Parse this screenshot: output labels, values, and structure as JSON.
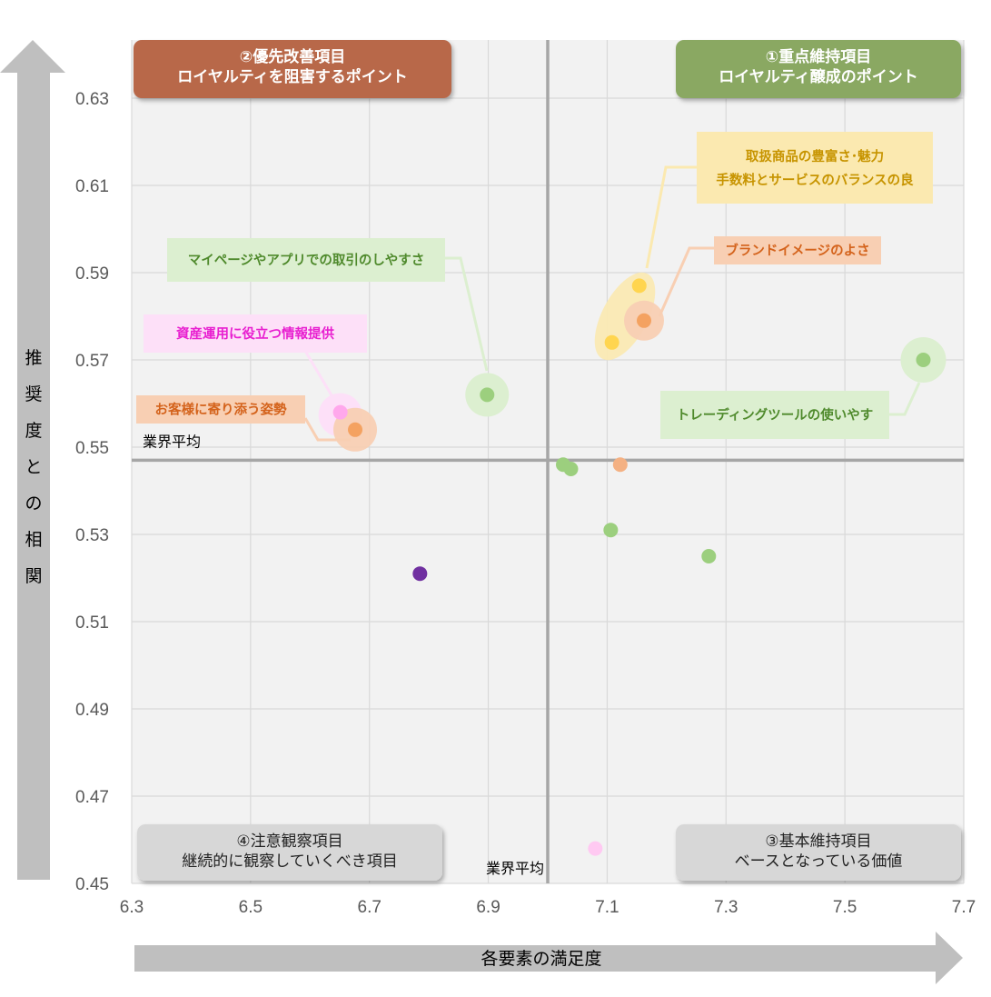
{
  "chart_data": {
    "type": "scatter",
    "title": "",
    "xlabel": "各要素の満足度",
    "ylabel": "推奨度との相関",
    "xlim": [
      6.3,
      7.7
    ],
    "ylim": [
      0.45,
      0.64
    ],
    "x_ticks": [
      "6.3",
      "6.5",
      "6.7",
      "6.9",
      "7.1",
      "7.3",
      "7.5",
      "7.7"
    ],
    "y_ticks": [
      "0.63",
      "0.61",
      "0.59",
      "0.57",
      "0.55",
      "0.53",
      "0.51",
      "0.49",
      "0.47",
      "0.45"
    ],
    "grid": true,
    "reference_lines": {
      "x_average": 7.0,
      "y_average": 0.547,
      "x_label": "業界平均",
      "y_label": "業界平均"
    },
    "quadrants": [
      {
        "id": "q1",
        "line1": "①重点維持項目",
        "line2": "ロイヤルティ醸成のポイント",
        "color": "#8aa862"
      },
      {
        "id": "q2",
        "line1": "②優先改善項目",
        "line2": "ロイヤルティを阻害するポイント",
        "color": "#b8674a"
      },
      {
        "id": "q3",
        "line1": "③基本維持項目",
        "line2": "ベースとなっている価値",
        "color": "#d7d7d7"
      },
      {
        "id": "q4",
        "line1": "④注意観察項目",
        "line2": "継続的に観察していくべき項目",
        "color": "#d7d7d7"
      }
    ],
    "points": [
      {
        "x": 7.154,
        "y": 0.587,
        "color": "#ffd54f"
      },
      {
        "x": 7.108,
        "y": 0.574,
        "color": "#ffd54f"
      },
      {
        "x": 7.162,
        "y": 0.579,
        "color": "#f4a261"
      },
      {
        "x": 6.898,
        "y": 0.562,
        "color": "#9ccf7e"
      },
      {
        "x": 7.632,
        "y": 0.57,
        "color": "#9ccf7e"
      },
      {
        "x": 6.651,
        "y": 0.558,
        "color": "#ffa8ec"
      },
      {
        "x": 6.676,
        "y": 0.554,
        "color": "#f4a261"
      },
      {
        "x": 7.026,
        "y": 0.546,
        "color": "#9ccf7e"
      },
      {
        "x": 7.039,
        "y": 0.545,
        "color": "#9ccf7e"
      },
      {
        "x": 7.122,
        "y": 0.546,
        "color": "#f4b183"
      },
      {
        "x": 7.106,
        "y": 0.531,
        "color": "#9ccf7e"
      },
      {
        "x": 7.271,
        "y": 0.525,
        "color": "#9ccf7e"
      },
      {
        "x": 6.785,
        "y": 0.521,
        "color": "#7030a0"
      },
      {
        "x": 7.08,
        "y": 0.458,
        "color": "#ffc9f2"
      }
    ],
    "callouts": [
      {
        "text1": "取扱商品の豊富さ･魅力",
        "text2": "手数料とサービスのバランスの良",
        "color": "#c79400",
        "bg": "#fbe9b0"
      },
      {
        "text1": "ブランドイメージのよさ",
        "color": "#d4631c",
        "bg": "#f8cfb3"
      },
      {
        "text1": "マイページやアプリでの取引のしやすさ",
        "color": "#4f8a2c",
        "bg": "#dcefd0"
      },
      {
        "text1": "資産運用に役立つ情報提供",
        "color": "#e81fd0",
        "bg": "#fde0f8"
      },
      {
        "text1": "お客様に寄り添う姿勢",
        "color": "#d4631c",
        "bg": "#f8cfb3"
      },
      {
        "text1": "トレーディングツールの使いやす",
        "color": "#4f8a2c",
        "bg": "#dcefd0"
      }
    ]
  }
}
